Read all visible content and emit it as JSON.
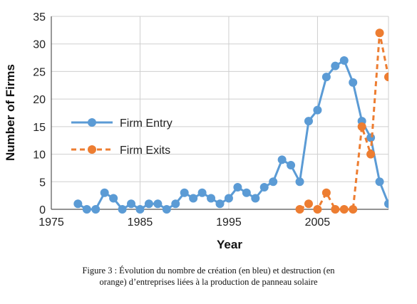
{
  "chart_data": {
    "type": "line",
    "xlabel": "Year",
    "ylabel": "Number of Firms",
    "xlim": [
      1975,
      2013
    ],
    "ylim": [
      0,
      35
    ],
    "x_ticks": [
      1975,
      1985,
      1995,
      2005
    ],
    "y_ticks": [
      0,
      5,
      10,
      15,
      20,
      25,
      30,
      35
    ],
    "grid": true,
    "legend_position": "middle-left",
    "series": [
      {
        "name": "Firm Entry",
        "color": "#5b9bd5",
        "line_style": "solid",
        "x": [
          1978,
          1979,
          1980,
          1981,
          1982,
          1983,
          1984,
          1985,
          1986,
          1987,
          1988,
          1989,
          1990,
          1991,
          1992,
          1993,
          1994,
          1995,
          1996,
          1997,
          1998,
          1999,
          2000,
          2001,
          2002,
          2003,
          2004,
          2005,
          2006,
          2007,
          2008,
          2009,
          2010,
          2011,
          2012,
          2013
        ],
        "values": [
          1,
          0,
          0,
          3,
          2,
          0,
          1,
          0,
          1,
          1,
          0,
          1,
          3,
          2,
          3,
          2,
          1,
          2,
          4,
          3,
          2,
          4,
          5,
          9,
          8,
          5,
          16,
          18,
          24,
          26,
          27,
          23,
          16,
          13,
          5,
          1
        ]
      },
      {
        "name": "Firm Exits",
        "color": "#ed7d31",
        "line_style": "dashed",
        "x": [
          2003,
          2004,
          2005,
          2006,
          2007,
          2008,
          2009,
          2010,
          2011,
          2012,
          2013
        ],
        "values": [
          0,
          1,
          0,
          3,
          0,
          0,
          0,
          15,
          10,
          32,
          24
        ]
      }
    ]
  },
  "caption": {
    "line1": "Figure 3 : Évolution du nombre de création (en bleu) et destruction (en",
    "line2": "orange) d’entreprises liées à la production de panneau solaire"
  }
}
